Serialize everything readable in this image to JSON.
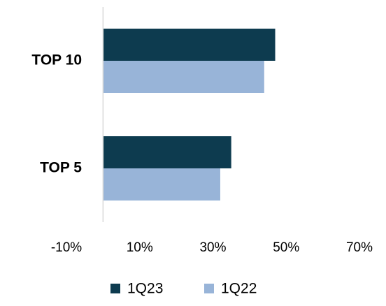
{
  "chart_data": {
    "type": "hbar",
    "categories": [
      "TOP 10",
      "TOP 5"
    ],
    "series": [
      {
        "name": "1Q23",
        "color": "#0d3b4f",
        "values": [
          47,
          35
        ]
      },
      {
        "name": "1Q22",
        "color": "#98b4d8",
        "values": [
          44,
          32
        ]
      }
    ],
    "xlim": [
      -10,
      70
    ],
    "xticks": [
      {
        "value": -10,
        "label": "-10%"
      },
      {
        "value": 10,
        "label": "10%"
      },
      {
        "value": 30,
        "label": "30%"
      },
      {
        "value": 50,
        "label": "50%"
      },
      {
        "value": 70,
        "label": "70%"
      }
    ],
    "grid": false,
    "legend": "bottom"
  }
}
